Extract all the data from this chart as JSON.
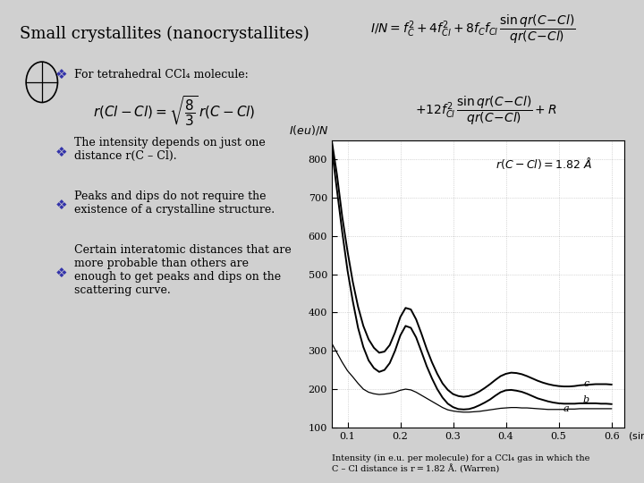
{
  "title": "Small crystallites (nanocrystallites)",
  "background_color": "#d0d0d0",
  "bullet_color": "#3333aa",
  "yticks": [
    100,
    200,
    300,
    400,
    500,
    600,
    700,
    800
  ],
  "xticks": [
    0.1,
    0.2,
    0.3,
    0.4,
    0.5,
    0.6
  ],
  "ylim": [
    100,
    850
  ],
  "xlim": [
    0.07,
    0.625
  ],
  "curve_a_x": [
    0.07,
    0.08,
    0.09,
    0.1,
    0.11,
    0.12,
    0.13,
    0.14,
    0.15,
    0.16,
    0.17,
    0.18,
    0.19,
    0.2,
    0.21,
    0.22,
    0.23,
    0.24,
    0.25,
    0.26,
    0.27,
    0.28,
    0.29,
    0.3,
    0.31,
    0.32,
    0.33,
    0.34,
    0.35,
    0.36,
    0.37,
    0.38,
    0.39,
    0.4,
    0.41,
    0.42,
    0.43,
    0.44,
    0.45,
    0.46,
    0.47,
    0.48,
    0.49,
    0.5,
    0.51,
    0.52,
    0.53,
    0.54,
    0.55,
    0.56,
    0.57,
    0.58,
    0.59,
    0.6
  ],
  "curve_a_y": [
    320,
    295,
    270,
    248,
    232,
    215,
    200,
    192,
    188,
    186,
    187,
    189,
    192,
    197,
    200,
    198,
    192,
    184,
    176,
    168,
    160,
    152,
    146,
    143,
    141,
    140,
    140,
    141,
    142,
    144,
    146,
    148,
    150,
    151,
    152,
    152,
    151,
    151,
    150,
    149,
    148,
    147,
    147,
    147,
    147,
    148,
    148,
    149,
    149,
    149,
    149,
    149,
    149,
    149
  ],
  "curve_b_x": [
    0.07,
    0.08,
    0.09,
    0.1,
    0.11,
    0.12,
    0.13,
    0.14,
    0.15,
    0.16,
    0.17,
    0.18,
    0.19,
    0.2,
    0.21,
    0.22,
    0.23,
    0.24,
    0.25,
    0.26,
    0.27,
    0.28,
    0.29,
    0.3,
    0.31,
    0.32,
    0.33,
    0.34,
    0.35,
    0.36,
    0.37,
    0.38,
    0.39,
    0.4,
    0.41,
    0.42,
    0.43,
    0.44,
    0.45,
    0.46,
    0.47,
    0.48,
    0.49,
    0.5,
    0.51,
    0.52,
    0.53,
    0.54,
    0.55,
    0.56,
    0.57,
    0.58,
    0.59,
    0.6
  ],
  "curve_b_y": [
    830,
    720,
    610,
    510,
    430,
    360,
    310,
    275,
    255,
    245,
    250,
    268,
    300,
    340,
    365,
    360,
    335,
    298,
    260,
    228,
    200,
    178,
    162,
    153,
    148,
    147,
    148,
    152,
    158,
    165,
    173,
    183,
    192,
    197,
    198,
    196,
    193,
    188,
    182,
    176,
    172,
    168,
    165,
    163,
    162,
    162,
    162,
    163,
    163,
    163,
    163,
    162,
    162,
    161
  ],
  "curve_c_x": [
    0.07,
    0.08,
    0.09,
    0.1,
    0.11,
    0.12,
    0.13,
    0.14,
    0.15,
    0.16,
    0.17,
    0.18,
    0.19,
    0.2,
    0.21,
    0.22,
    0.23,
    0.24,
    0.25,
    0.26,
    0.27,
    0.28,
    0.29,
    0.3,
    0.31,
    0.32,
    0.33,
    0.34,
    0.35,
    0.36,
    0.37,
    0.38,
    0.39,
    0.4,
    0.41,
    0.42,
    0.43,
    0.44,
    0.45,
    0.46,
    0.47,
    0.48,
    0.49,
    0.5,
    0.51,
    0.52,
    0.53,
    0.54,
    0.55,
    0.56,
    0.57,
    0.58,
    0.59,
    0.6
  ],
  "curve_c_y": [
    850,
    760,
    650,
    560,
    480,
    415,
    365,
    330,
    308,
    295,
    298,
    315,
    348,
    388,
    412,
    408,
    382,
    345,
    305,
    270,
    240,
    215,
    198,
    187,
    182,
    180,
    182,
    187,
    194,
    203,
    213,
    224,
    234,
    240,
    243,
    242,
    239,
    234,
    228,
    222,
    217,
    213,
    210,
    208,
    207,
    207,
    208,
    210,
    211,
    212,
    213,
    213,
    213,
    212
  ]
}
